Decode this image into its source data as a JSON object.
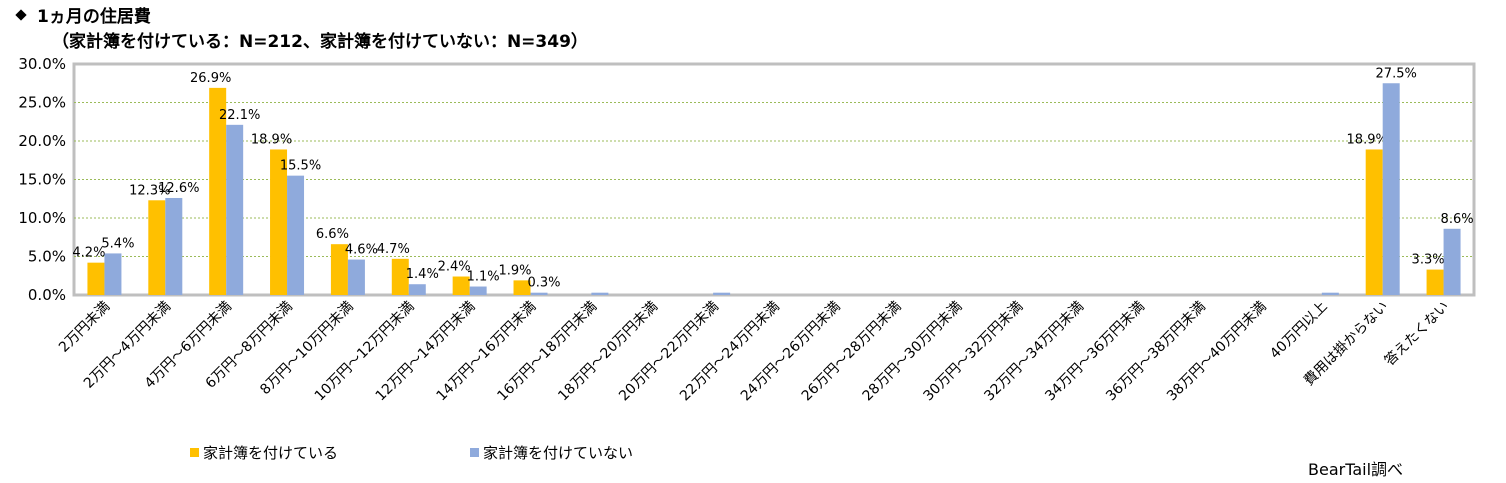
{
  "title": "1ヵ月の住居費",
  "subtitle": "（家計簿を付けている：N=212、家計簿を付けていない：N=349）",
  "source": "BearTail調べ",
  "colors": {
    "series1": "#FFC000",
    "series2": "#8FAADC",
    "frame": "#BFBFBF",
    "grid": "#9BBB59"
  },
  "chart_data": {
    "type": "bar",
    "categories": [
      "2万円未満",
      "2万円～4万円未満",
      "4万円～6万円未満",
      "6万円～8万円未満",
      "8万円～10万円未満",
      "10万円～12万円未満",
      "12万円～14万円未満",
      "14万円～16万円未満",
      "16万円～18万円未満",
      "18万円～20万円未満",
      "20万円～22万円未満",
      "22万円～24万円未満",
      "24万円～26万円未満",
      "26万円～28万円未満",
      "28万円～30万円未満",
      "30万円～32万円未満",
      "32万円～34万円未満",
      "34万円～36万円未満",
      "36万円～38万円未満",
      "38万円～40万円未満",
      "40万円以上",
      "費用は掛からない",
      "答えたくない"
    ],
    "series": [
      {
        "name": "家計簿を付けている",
        "values": [
          4.2,
          12.3,
          26.9,
          18.9,
          6.6,
          4.7,
          2.4,
          1.9,
          0,
          0,
          0,
          0,
          0,
          0,
          0,
          0,
          0,
          0,
          0,
          0,
          0,
          18.9,
          3.3
        ],
        "labels": [
          "4.2%",
          "12.3%",
          "26.9%",
          "18.9%",
          "6.6%",
          "4.7%",
          "2.4%",
          "1.9%",
          "",
          "",
          "",
          "",
          "",
          "",
          "",
          "",
          "",
          "",
          "",
          "",
          "",
          "18.9%",
          "3.3%"
        ]
      },
      {
        "name": "家計簿を付けていない",
        "values": [
          5.4,
          12.6,
          22.1,
          15.5,
          4.6,
          1.4,
          1.1,
          0.3,
          0.3,
          0,
          0.3,
          0,
          0,
          0,
          0,
          0,
          0,
          0,
          0,
          0,
          0.3,
          27.5,
          8.6
        ],
        "labels": [
          "5.4%",
          "12.6%",
          "22.1%",
          "15.5%",
          "4.6%",
          "1.4%",
          "1.1%",
          "0.3%",
          "",
          "",
          "",
          "",
          "",
          "",
          "",
          "",
          "",
          "",
          "",
          "",
          "",
          "27.5%",
          "8.6%"
        ]
      }
    ],
    "y_ticks": [
      "0.0%",
      "5.0%",
      "10.0%",
      "15.0%",
      "20.0%",
      "25.0%",
      "30.0%"
    ],
    "ylim": [
      0,
      30
    ],
    "grid": true,
    "legend": "bottom"
  }
}
